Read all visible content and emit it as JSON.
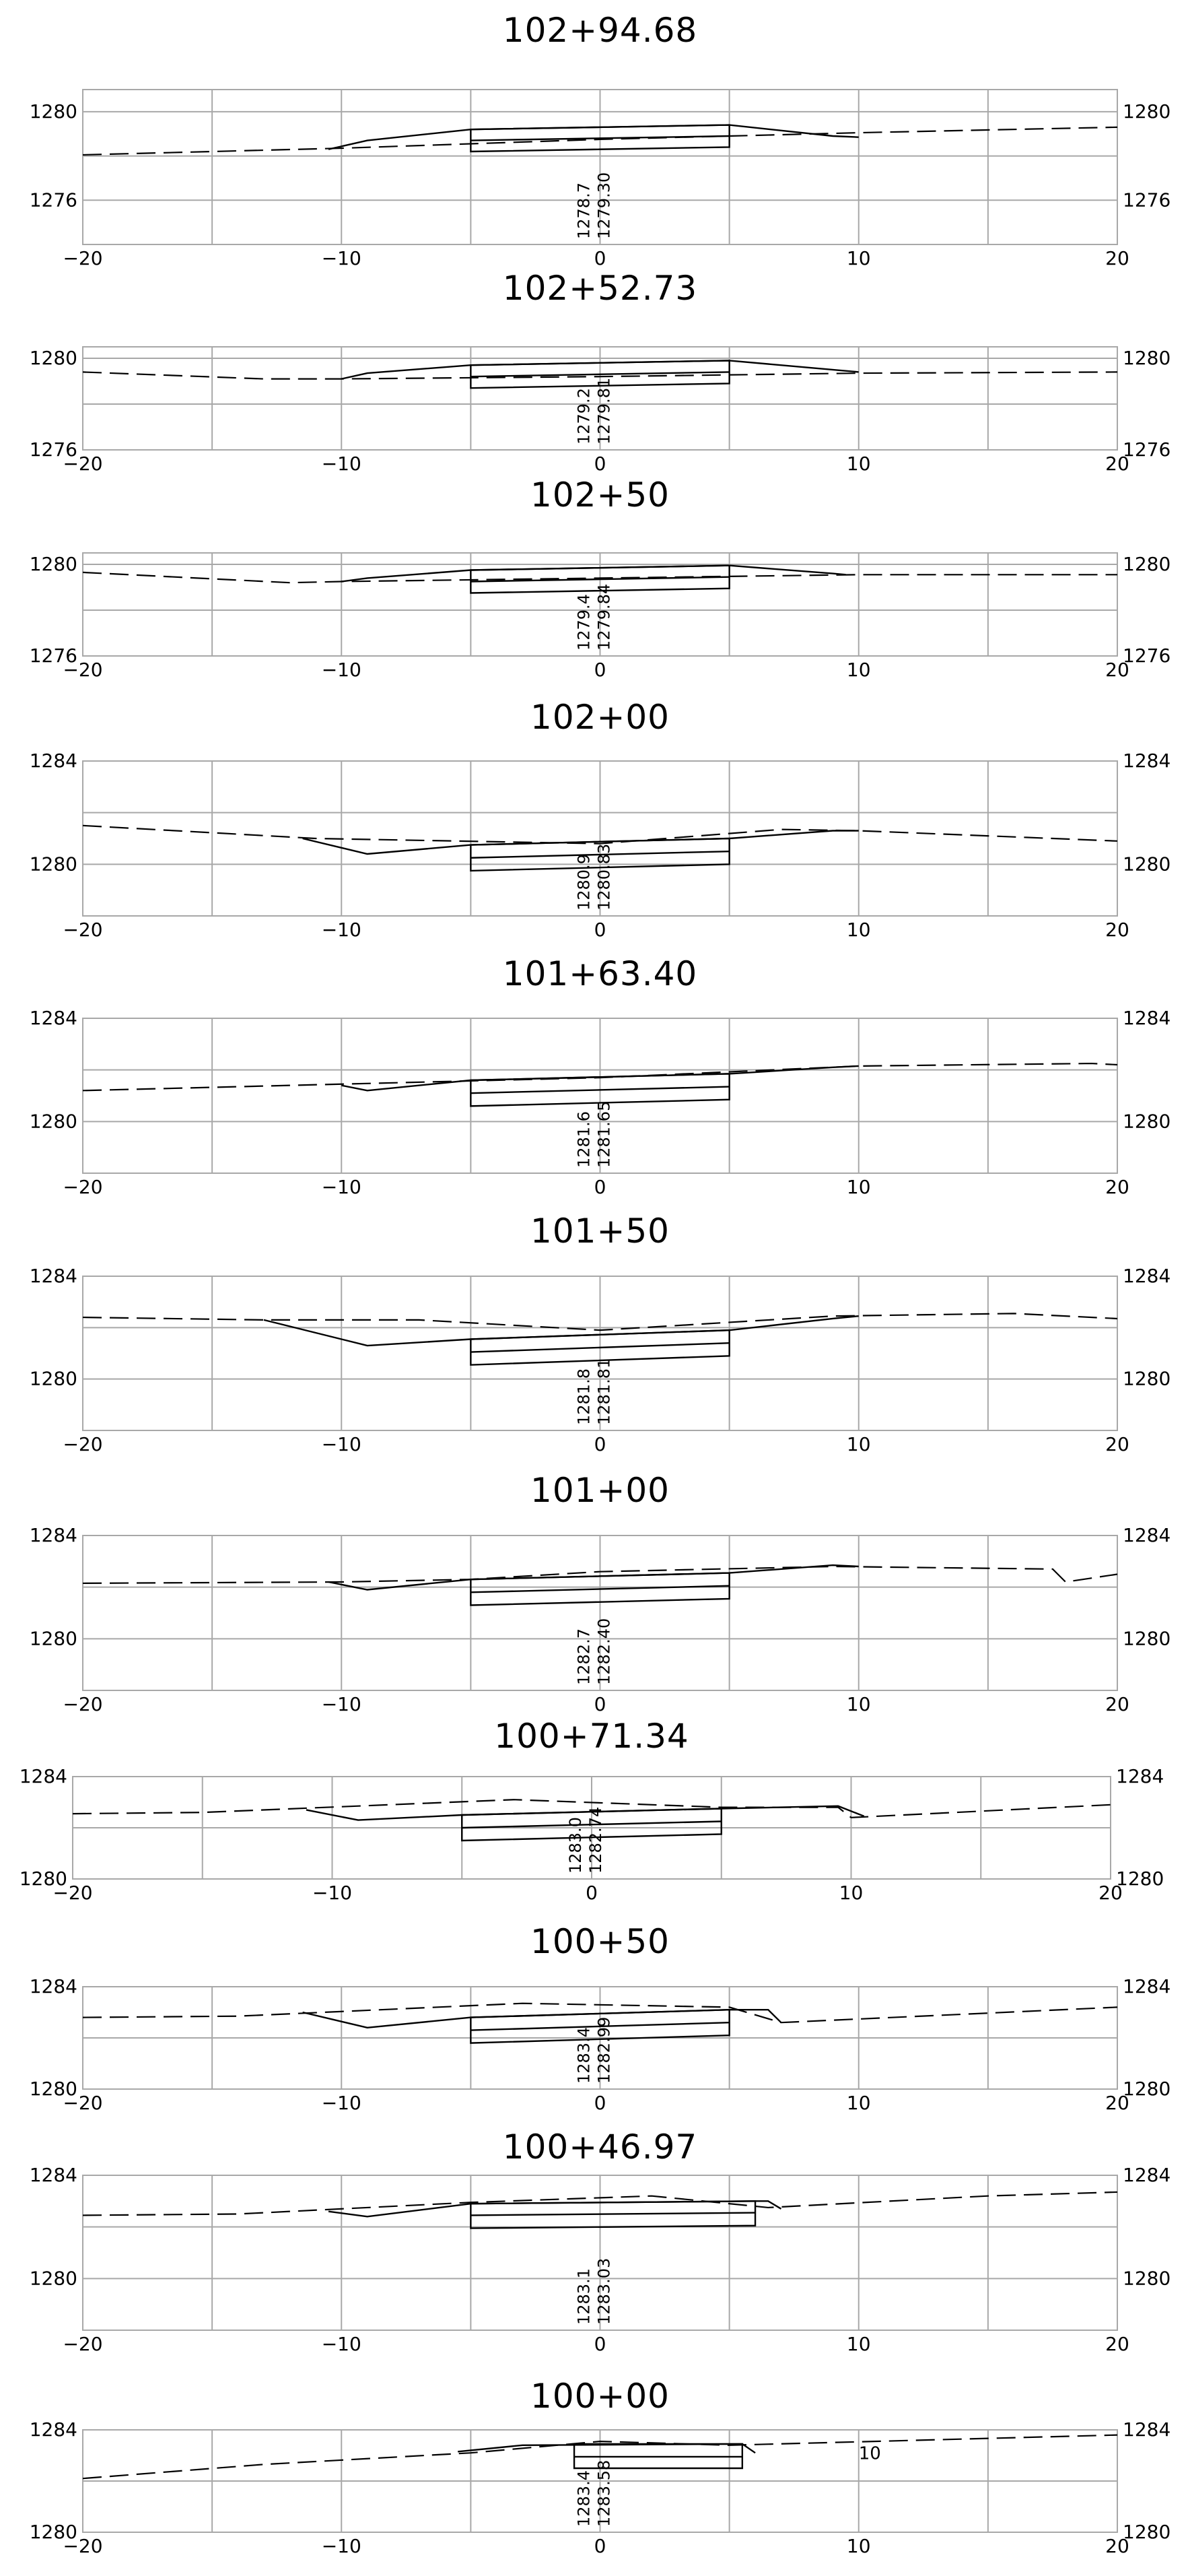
{
  "sections": [
    {
      "station": "102+94.68",
      "y_labels": [
        "1280",
        "1276"
      ],
      "y_ticks": [
        1280,
        1276
      ],
      "x_labels": [
        "−20",
        "−10",
        "0",
        "10",
        "20"
      ],
      "elev_labels": [
        "1278.7",
        "1279.30"
      ],
      "ylim": [
        1274,
        1281
      ],
      "ground": [
        [
          -20,
          1278.05
        ],
        [
          -10,
          1278.35
        ],
        [
          0,
          1278.75
        ],
        [
          10,
          1279.05
        ],
        [
          20,
          1279.3
        ]
      ],
      "design": [
        [
          -10.5,
          1278.3
        ],
        [
          -9,
          1278.7
        ],
        [
          -5,
          1279.2
        ],
        [
          5,
          1279.4
        ],
        [
          9,
          1278.9
        ],
        [
          10,
          1278.85
        ]
      ],
      "pavement": {
        "x0": -5,
        "x1": 5,
        "top0": 1279.2,
        "top1": 1279.4,
        "thickness": 1.0,
        "mid": 0.5
      }
    },
    {
      "station": "102+52.73",
      "y_labels": [
        "1280",
        "1276"
      ],
      "y_ticks": [
        1280,
        1276
      ],
      "x_labels": [
        "−20",
        "−10",
        "0",
        "10",
        "20"
      ],
      "elev_labels": [
        "1279.2",
        "1279.81"
      ],
      "ylim": [
        1276,
        1280.5
      ],
      "ground": [
        [
          -20,
          1279.4
        ],
        [
          -13,
          1279.1
        ],
        [
          -10,
          1279.1
        ],
        [
          0,
          1279.2
        ],
        [
          10,
          1279.35
        ],
        [
          20,
          1279.4
        ]
      ],
      "design": [
        [
          -10,
          1279.1
        ],
        [
          -9,
          1279.35
        ],
        [
          -5,
          1279.7
        ],
        [
          5,
          1279.9
        ],
        [
          9.5,
          1279.45
        ],
        [
          10,
          1279.4
        ]
      ],
      "pavement": {
        "x0": -5,
        "x1": 5,
        "top0": 1279.7,
        "top1": 1279.9,
        "thickness": 1.0,
        "mid": 0.5
      }
    },
    {
      "station": "102+50",
      "y_labels": [
        "1280",
        "1276"
      ],
      "y_ticks": [
        1280,
        1276
      ],
      "x_labels": [
        "−20",
        "−10",
        "0",
        "10",
        "20"
      ],
      "elev_labels": [
        "1279.4",
        "1279.84"
      ],
      "ylim": [
        1276,
        1280.5
      ],
      "ground": [
        [
          -20,
          1279.65
        ],
        [
          -12,
          1279.2
        ],
        [
          -10,
          1279.25
        ],
        [
          0,
          1279.4
        ],
        [
          10,
          1279.55
        ],
        [
          20,
          1279.55
        ]
      ],
      "design": [
        [
          -10,
          1279.25
        ],
        [
          -9,
          1279.4
        ],
        [
          -5,
          1279.75
        ],
        [
          5,
          1279.95
        ],
        [
          9,
          1279.6
        ],
        [
          9.5,
          1279.55
        ]
      ],
      "pavement": {
        "x0": -5,
        "x1": 5,
        "top0": 1279.75,
        "top1": 1279.95,
        "thickness": 1.0,
        "mid": 0.5
      }
    },
    {
      "station": "102+00",
      "y_labels": [
        "1284",
        "1280"
      ],
      "y_ticks": [
        1284,
        1280
      ],
      "x_labels": [
        "−20",
        "−10",
        "0",
        "10",
        "20"
      ],
      "elev_labels": [
        "1280.9",
        "1280.83"
      ],
      "ylim": [
        1278,
        1284
      ],
      "ground": [
        [
          -20,
          1281.5
        ],
        [
          -11,
          1281.0
        ],
        [
          0,
          1280.8
        ],
        [
          7,
          1281.35
        ],
        [
          10,
          1281.3
        ],
        [
          20,
          1280.9
        ]
      ],
      "design": [
        [
          -11.5,
          1281.0
        ],
        [
          -9,
          1280.4
        ],
        [
          -5,
          1280.75
        ],
        [
          5,
          1281.0
        ],
        [
          9,
          1281.3
        ],
        [
          10,
          1281.3
        ]
      ],
      "pavement": {
        "x0": -5,
        "x1": 5,
        "top0": 1280.75,
        "top1": 1281.0,
        "thickness": 1.0,
        "mid": 0.5
      }
    },
    {
      "station": "101+63.40",
      "y_labels": [
        "1284",
        "1280"
      ],
      "y_ticks": [
        1284,
        1280
      ],
      "x_labels": [
        "−20",
        "−10",
        "0",
        "10",
        "20"
      ],
      "elev_labels": [
        "1281.6",
        "1281.65"
      ],
      "ylim": [
        1278,
        1284
      ],
      "ground": [
        [
          -20,
          1281.2
        ],
        [
          -10,
          1281.45
        ],
        [
          0,
          1281.7
        ],
        [
          10,
          1282.15
        ],
        [
          19,
          1282.25
        ],
        [
          20,
          1282.2
        ]
      ],
      "design": [
        [
          -10,
          1281.4
        ],
        [
          -9,
          1281.2
        ],
        [
          -5,
          1281.6
        ],
        [
          5,
          1281.85
        ],
        [
          9,
          1282.1
        ],
        [
          10,
          1282.15
        ]
      ],
      "pavement": {
        "x0": -5,
        "x1": 5,
        "top0": 1281.6,
        "top1": 1281.85,
        "thickness": 1.0,
        "mid": 0.5
      }
    },
    {
      "station": "101+50",
      "y_labels": [
        "1284",
        "1280"
      ],
      "y_ticks": [
        1284,
        1280
      ],
      "x_labels": [
        "−20",
        "−10",
        "0",
        "10",
        "20"
      ],
      "elev_labels": [
        "1281.8",
        "1281.81"
      ],
      "ylim": [
        1278,
        1284
      ],
      "ground": [
        [
          -20,
          1282.4
        ],
        [
          -13,
          1282.3
        ],
        [
          -7,
          1282.3
        ],
        [
          0,
          1281.9
        ],
        [
          9,
          1282.45
        ],
        [
          16,
          1282.55
        ],
        [
          20,
          1282.35
        ]
      ],
      "design": [
        [
          -13,
          1282.3
        ],
        [
          -9,
          1281.3
        ],
        [
          -5,
          1281.55
        ],
        [
          5,
          1281.9
        ],
        [
          9,
          1282.35
        ],
        [
          10,
          1282.45
        ]
      ],
      "pavement": {
        "x0": -5,
        "x1": 5,
        "top0": 1281.55,
        "top1": 1281.9,
        "thickness": 1.0,
        "mid": 0.5
      }
    },
    {
      "station": "101+00",
      "y_labels": [
        "1284",
        "1280"
      ],
      "y_ticks": [
        1284,
        1280
      ],
      "x_labels": [
        "−20",
        "−10",
        "0",
        "10",
        "20"
      ],
      "elev_labels": [
        "1282.7",
        "1282.40"
      ],
      "ylim": [
        1278,
        1284
      ],
      "ground": [
        [
          -20,
          1282.15
        ],
        [
          -10,
          1282.2
        ],
        [
          -5,
          1282.3
        ],
        [
          0,
          1282.6
        ],
        [
          9,
          1282.8
        ],
        [
          17.5,
          1282.7
        ],
        [
          18,
          1282.2
        ],
        [
          20,
          1282.5
        ]
      ],
      "design": [
        [
          -10.5,
          1282.2
        ],
        [
          -9,
          1281.9
        ],
        [
          -5,
          1282.3
        ],
        [
          5,
          1282.55
        ],
        [
          9,
          1282.85
        ],
        [
          10,
          1282.8
        ]
      ],
      "pavement": {
        "x0": -5,
        "x1": 5,
        "top0": 1282.3,
        "top1": 1282.55,
        "thickness": 1.0,
        "mid": 0.5
      }
    },
    {
      "station": "100+71.34",
      "y_labels": [
        "1284",
        "1280"
      ],
      "y_ticks": [
        1284,
        1280
      ],
      "x_labels": [
        "−20",
        "−10",
        "0",
        "10",
        "20"
      ],
      "elev_labels": [
        "1283.0",
        "1282.74"
      ],
      "ylim": [
        1280,
        1284
      ],
      "ground": [
        [
          -20,
          1282.55
        ],
        [
          -15,
          1282.6
        ],
        [
          -3,
          1283.1
        ],
        [
          5,
          1282.8
        ],
        [
          9.5,
          1282.8
        ],
        [
          10,
          1282.4
        ],
        [
          20,
          1282.9
        ]
      ],
      "design": [
        [
          -11,
          1282.7
        ],
        [
          -9,
          1282.3
        ],
        [
          -5,
          1282.5
        ],
        [
          5,
          1282.75
        ],
        [
          9.5,
          1282.85
        ],
        [
          10.5,
          1282.45
        ]
      ],
      "pavement": {
        "x0": -5,
        "x1": 5,
        "top0": 1282.5,
        "top1": 1282.75,
        "thickness": 1.0,
        "mid": 0.5
      }
    },
    {
      "station": "100+50",
      "y_labels": [
        "1284",
        "1280"
      ],
      "y_ticks": [
        1284,
        1280
      ],
      "x_labels": [
        "−20",
        "−10",
        "0",
        "10",
        "20"
      ],
      "elev_labels": [
        "1283.4",
        "1282.99"
      ],
      "ylim": [
        1280,
        1284
      ],
      "ground": [
        [
          -20,
          1282.8
        ],
        [
          -14,
          1282.85
        ],
        [
          -3,
          1283.35
        ],
        [
          5,
          1283.2
        ],
        [
          7,
          1282.6
        ],
        [
          20,
          1283.2
        ]
      ],
      "design": [
        [
          -11.5,
          1283.0
        ],
        [
          -9,
          1282.4
        ],
        [
          -5,
          1282.8
        ],
        [
          5,
          1283.1
        ],
        [
          6.5,
          1283.1
        ],
        [
          7,
          1282.6
        ]
      ],
      "pavement": {
        "x0": -5,
        "x1": 5,
        "top0": 1282.8,
        "top1": 1283.1,
        "thickness": 1.0,
        "mid": 0.5
      }
    },
    {
      "station": "100+46.97",
      "y_labels": [
        "1284",
        "1280"
      ],
      "y_ticks": [
        1284,
        1280
      ],
      "x_labels": [
        "−20",
        "−10",
        "0",
        "10",
        "20"
      ],
      "elev_labels": [
        "1283.1",
        "1283.03"
      ],
      "ylim": [
        1278,
        1284
      ],
      "ground": [
        [
          -20,
          1282.45
        ],
        [
          -14,
          1282.5
        ],
        [
          -5,
          1282.95
        ],
        [
          2,
          1283.2
        ],
        [
          6.5,
          1282.75
        ],
        [
          15,
          1283.2
        ],
        [
          20,
          1283.35
        ]
      ],
      "design": [
        [
          -10.5,
          1282.6
        ],
        [
          -9,
          1282.4
        ],
        [
          -5,
          1282.9
        ],
        [
          6,
          1283.0
        ],
        [
          6.5,
          1283.0
        ],
        [
          7,
          1282.7
        ]
      ],
      "pavement": {
        "x0": -5,
        "x1": 6,
        "top0": 1282.9,
        "top1": 1283.0,
        "thickness": 0.95,
        "mid": 0.45
      }
    },
    {
      "station": "100+00",
      "y_labels": [
        "1284",
        "1280"
      ],
      "y_ticks": [
        1284,
        1280
      ],
      "x_labels": [
        "−20",
        "−10",
        "0",
        "10",
        "20"
      ],
      "elev_labels": [
        "1283.4",
        "1283.58"
      ],
      "ylim": [
        1280,
        1284
      ],
      "ground": [
        [
          -20,
          1282.1
        ],
        [
          -13,
          1282.65
        ],
        [
          -5,
          1283.1
        ],
        [
          0,
          1283.55
        ],
        [
          5,
          1283.4
        ],
        [
          20,
          1283.8
        ]
      ],
      "design": [
        [
          -5.5,
          1283.15
        ],
        [
          -3,
          1283.4
        ],
        [
          5.5,
          1283.45
        ],
        [
          6,
          1283.1
        ]
      ],
      "pavement": {
        "x0": -1,
        "x1": 5.5,
        "top0": 1283.45,
        "top1": 1283.45,
        "thickness": 0.95,
        "mid": 0.5
      },
      "annotation": {
        "text": "10",
        "x": 10,
        "y": 1282.85
      }
    }
  ]
}
